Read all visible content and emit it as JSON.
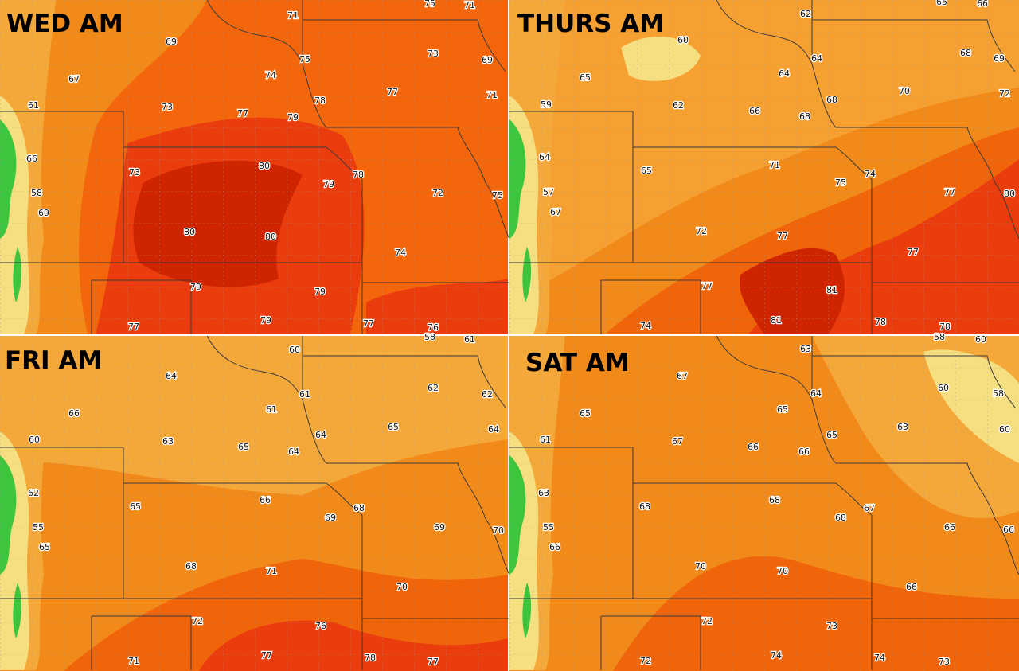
{
  "panels": [
    {
      "title": "WED AM",
      "labels": [
        69,
        71,
        75,
        71,
        67,
        74,
        75,
        73,
        69,
        61,
        73,
        77,
        79,
        78,
        77,
        71,
        66,
        73,
        80,
        79,
        78,
        72,
        75,
        58,
        69,
        80,
        80,
        74,
        79,
        79,
        77,
        79,
        77,
        76
      ]
    },
    {
      "title": "THURS AM",
      "labels": [
        62,
        65,
        66,
        60,
        68,
        69,
        65,
        64,
        64,
        59,
        62,
        66,
        68,
        70,
        72,
        68,
        64,
        65,
        71,
        74,
        75,
        77,
        80,
        57,
        67,
        72,
        77,
        77,
        77,
        81,
        74,
        81,
        78,
        78
      ]
    },
    {
      "title": "FRI AM",
      "labels": [
        60,
        58,
        61,
        64,
        61,
        62,
        62,
        66,
        61,
        65,
        64,
        60,
        63,
        65,
        64,
        64,
        62,
        65,
        66,
        68,
        69,
        69,
        70,
        55,
        65,
        68,
        71,
        70,
        72,
        76,
        71,
        77,
        78,
        77
      ]
    },
    {
      "title": "SAT AM",
      "labels": [
        63,
        58,
        60,
        67,
        64,
        60,
        58,
        65,
        65,
        63,
        60,
        61,
        67,
        66,
        65,
        66,
        63,
        68,
        68,
        67,
        68,
        66,
        66,
        55,
        66,
        70,
        70,
        66,
        72,
        73,
        72,
        74,
        74,
        73
      ]
    }
  ]
}
